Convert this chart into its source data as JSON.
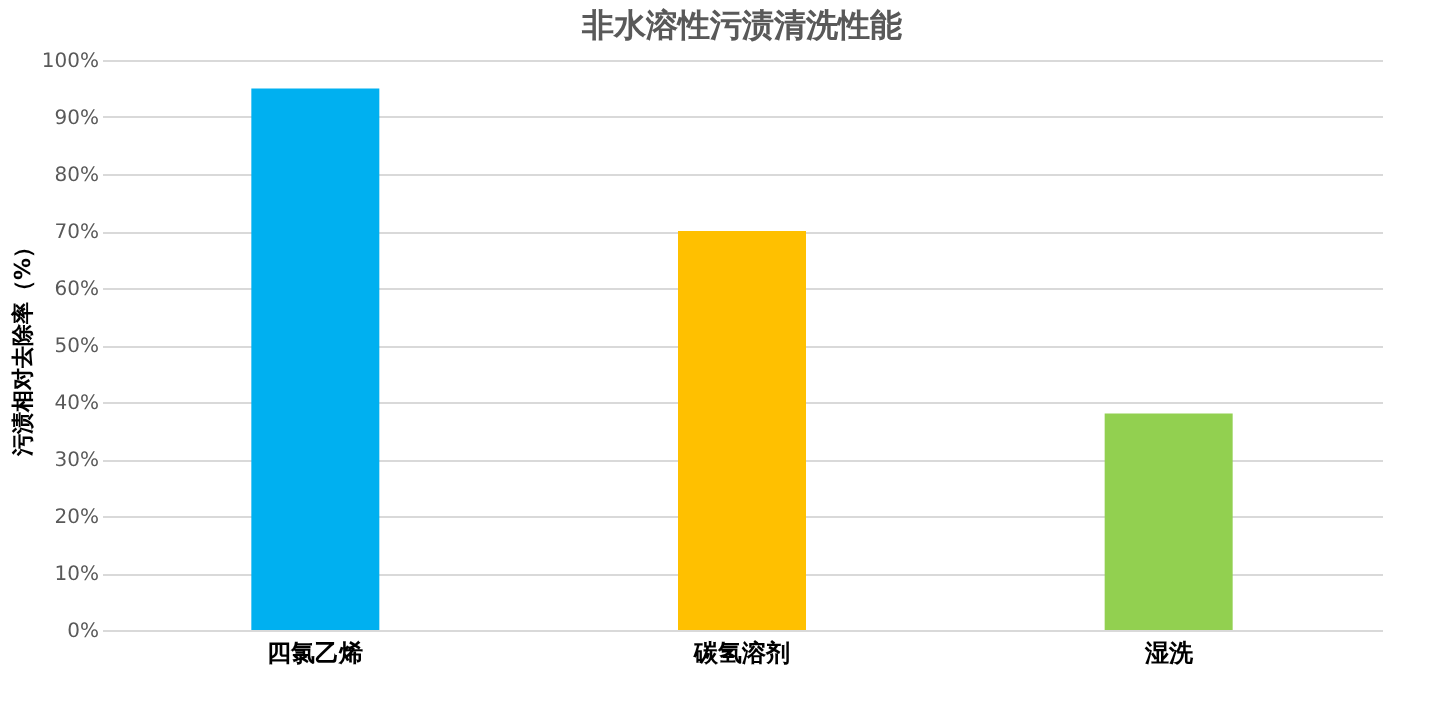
{
  "chart_data": {
    "type": "bar",
    "title": "非水溶性污渍清洗性能",
    "ylabel": "污渍相对去除率（%）",
    "categories": [
      "四氯乙烯",
      "碳氢溶剂",
      "湿洗"
    ],
    "values": [
      95,
      70,
      38
    ],
    "colors": [
      "#00b0f0",
      "#ffc000",
      "#92d050"
    ],
    "ylim": [
      0,
      100
    ],
    "yticks": [
      {
        "value": 0,
        "label": "0%"
      },
      {
        "value": 10,
        "label": "10%"
      },
      {
        "value": 20,
        "label": "20%"
      },
      {
        "value": 30,
        "label": "30%"
      },
      {
        "value": 40,
        "label": "40%"
      },
      {
        "value": 50,
        "label": "50%"
      },
      {
        "value": 60,
        "label": "60%"
      },
      {
        "value": 70,
        "label": "70%"
      },
      {
        "value": 80,
        "label": "80%"
      },
      {
        "value": 90,
        "label": "90%"
      },
      {
        "value": 100,
        "label": "100%"
      }
    ],
    "grid": "y"
  }
}
